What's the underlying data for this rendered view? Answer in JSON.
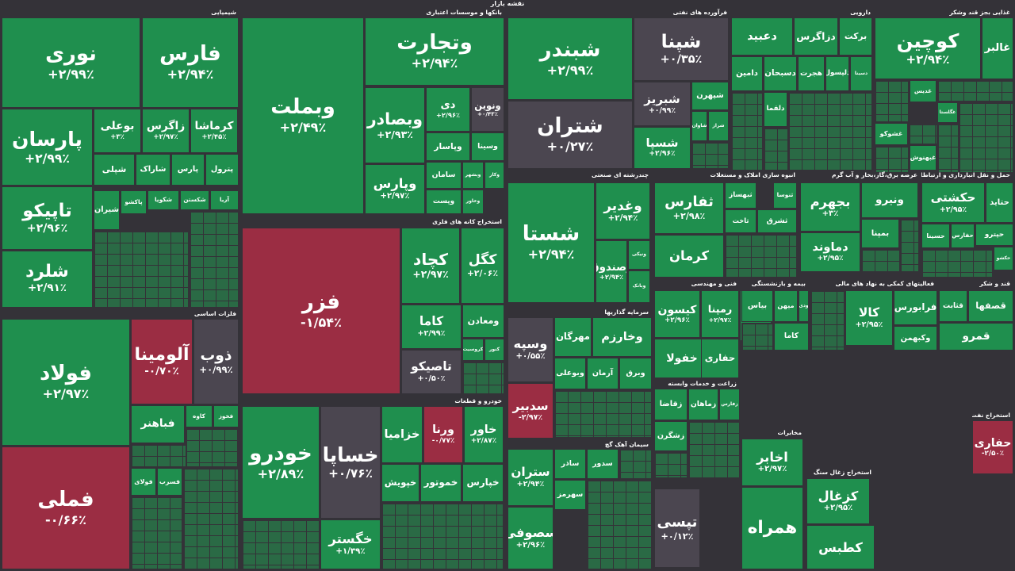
{
  "header": {
    "title": "نقشه بازار"
  },
  "colors": {
    "positive": "#1f8f4e",
    "negative": "#9b2d43",
    "neutral": "#4b4650",
    "background": "#343238"
  },
  "chart_data": {
    "type": "treemap",
    "title": "نقشه بازار",
    "value_unit": "percent change",
    "sectors": [
      {
        "name": "شیمیایی",
        "stocks": [
          {
            "name": "نوری",
            "change": "+۲/۹۹٪"
          },
          {
            "name": "فارس",
            "change": "+۲/۹۴٪"
          },
          {
            "name": "پارسان",
            "change": "+۲/۹۹٪"
          },
          {
            "name": "بوعلی",
            "change": "+۳٪"
          },
          {
            "name": "زاگرس",
            "change": "+۲/۹۷٪"
          },
          {
            "name": "کرماشا",
            "change": "+۲/۴۵٪"
          },
          {
            "name": "تاپیکو",
            "change": "+۲/۹۶٪"
          },
          {
            "name": "شلرد",
            "change": "+۲/۹۱٪"
          },
          {
            "name": "شپلی"
          },
          {
            "name": "شاراک"
          },
          {
            "name": "پارس"
          },
          {
            "name": "پترول"
          },
          {
            "name": "شیران"
          },
          {
            "name": "پاکشو"
          },
          {
            "name": "شکویا"
          },
          {
            "name": "شکستن"
          },
          {
            "name": "آریا"
          }
        ]
      },
      {
        "name": "بانکها و موسسات اعتباری",
        "stocks": [
          {
            "name": "وبملت",
            "change": "+۲/۴۹٪"
          },
          {
            "name": "وتجارت",
            "change": "+۲/۹۴٪"
          },
          {
            "name": "وبصادر",
            "change": "+۲/۹۳٪"
          },
          {
            "name": "دی",
            "change": "+۲/۹۶٪"
          },
          {
            "name": "ونوین",
            "change": "+۰/۴۳٪"
          },
          {
            "name": "وپارس",
            "change": "+۲/۹۷٪"
          },
          {
            "name": "وپاسار"
          },
          {
            "name": "وسینا"
          },
          {
            "name": "سامان"
          },
          {
            "name": "وبشهر"
          },
          {
            "name": "وکار"
          },
          {
            "name": "وپست"
          },
          {
            "name": "وخاور"
          }
        ]
      },
      {
        "name": "استخراج کانه های فلزی",
        "stocks": [
          {
            "name": "فزر",
            "change": "-۱/۵۴٪"
          },
          {
            "name": "کچاد",
            "change": "+۲/۹۷٪"
          },
          {
            "name": "کگل",
            "change": "+۲/۰۶٪"
          },
          {
            "name": "کاما",
            "change": "+۲/۹۹٪"
          },
          {
            "name": "تاصیکو",
            "change": "+۰/۵۰٪"
          },
          {
            "name": "ومعادن"
          },
          {
            "name": "کروسیت"
          },
          {
            "name": "کنور"
          }
        ]
      },
      {
        "name": "فرآورده های نفتی",
        "stocks": [
          {
            "name": "شبندر",
            "change": "+۲/۹۹٪"
          },
          {
            "name": "شپنا",
            "change": "+۰/۳۵٪"
          },
          {
            "name": "شتران",
            "change": "+۰/۲۷٪"
          },
          {
            "name": "شبریز",
            "change": "+۰/۹۹٪"
          },
          {
            "name": "شسپا",
            "change": "+۲/۹۶٪"
          },
          {
            "name": "شپهرن"
          },
          {
            "name": "شاوان"
          },
          {
            "name": "شراز"
          }
        ]
      },
      {
        "name": "دارویی",
        "stocks": [
          {
            "name": "دعبید"
          },
          {
            "name": "دزاگرس"
          },
          {
            "name": "برکت"
          },
          {
            "name": "دامین"
          },
          {
            "name": "دسبحان"
          },
          {
            "name": "هجرت"
          },
          {
            "name": "دلپسول"
          },
          {
            "name": "دسینا"
          },
          {
            "name": "دلقما"
          }
        ]
      },
      {
        "name": "غذایی بجز قند وشکر",
        "stocks": [
          {
            "name": "کوچین",
            "change": "+۲/۹۴٪"
          },
          {
            "name": "غالبر"
          },
          {
            "name": "غدیس"
          },
          {
            "name": "غگلستا"
          },
          {
            "name": "غشوکو"
          },
          {
            "name": "غبهنوش"
          }
        ]
      },
      {
        "name": "فلزات اساسی",
        "stocks": [
          {
            "name": "فولاد",
            "change": "+۲/۹۷٪"
          },
          {
            "name": "فملی",
            "change": "-۰/۶۶٪"
          },
          {
            "name": "آلومینا",
            "change": "-۰/۷۰٪"
          },
          {
            "name": "ذوب",
            "change": "+۰/۹۹٪"
          },
          {
            "name": "فباهنر"
          },
          {
            "name": "کاوه"
          },
          {
            "name": "فخوز"
          },
          {
            "name": "فولای"
          },
          {
            "name": "فسرب"
          }
        ]
      },
      {
        "name": "چندرشته ای صنعتی",
        "stocks": [
          {
            "name": "شستا",
            "change": "+۲/۹۴٪"
          },
          {
            "name": "وغدیر",
            "change": "+۲/۹۴٪"
          },
          {
            "name": "وصندوق",
            "change": "+۲/۹۴٪"
          },
          {
            "name": "ونیکی"
          },
          {
            "name": "وبانک"
          }
        ]
      },
      {
        "name": "انبوه سازی املاک و مستغلات",
        "stocks": [
          {
            "name": "ثفارس",
            "change": "+۲/۹۸٪"
          },
          {
            "name": "ثبهساز"
          },
          {
            "name": "ثنوسا"
          },
          {
            "name": "کرمان"
          },
          {
            "name": "ثاخت"
          },
          {
            "name": "ثشرق"
          }
        ]
      },
      {
        "name": "عرضه برق،گاز،بخار و آب گرم",
        "stocks": [
          {
            "name": "بجهرم",
            "change": "+۳٪"
          },
          {
            "name": "دماوند",
            "change": "+۲/۹۵٪"
          },
          {
            "name": "ونیرو"
          },
          {
            "name": "بمپنا"
          }
        ]
      },
      {
        "name": "حمل و نقل انبارداری و ارتباطات",
        "stocks": [
          {
            "name": "حکشتی",
            "change": "+۲/۹۵٪"
          },
          {
            "name": "حتاید"
          },
          {
            "name": "حسینا"
          },
          {
            "name": "حفارس"
          },
          {
            "name": "حپترو"
          },
          {
            "name": "حکشو"
          }
        ]
      },
      {
        "name": "خودرو و قطعات",
        "stocks": [
          {
            "name": "خودرو",
            "change": "+۲/۸۹٪"
          },
          {
            "name": "خساپا",
            "change": "+۰/۷۶٪"
          },
          {
            "name": "خگستر",
            "change": "+۱/۳۹٪"
          },
          {
            "name": "خزامیا"
          },
          {
            "name": "ورنا",
            "change": "-۰/۷۷٪"
          },
          {
            "name": "خاور",
            "change": "+۲/۸۷٪"
          },
          {
            "name": "خپویش"
          },
          {
            "name": "خموتور"
          },
          {
            "name": "خپارس"
          }
        ]
      },
      {
        "name": "سرمایه گذاریها",
        "stocks": [
          {
            "name": "وسپه",
            "change": "+۰/۵۵٪"
          },
          {
            "name": "وخارزم"
          },
          {
            "name": "مهرگان"
          },
          {
            "name": "وبوعلی"
          },
          {
            "name": "آرمان"
          },
          {
            "name": "وبرق"
          }
        ]
      },
      {
        "name": "سیمان آهک گچ",
        "stocks": [
          {
            "name": "ستران",
            "change": "+۲/۹۴٪"
          },
          {
            "name": "سدبیر",
            "change": "-۲/۹۷٪"
          },
          {
            "name": "سصوفی",
            "change": "+۲/۹۶٪"
          },
          {
            "name": "ساذر"
          },
          {
            "name": "سدور"
          },
          {
            "name": "سهرمز"
          }
        ]
      },
      {
        "name": "فنی و مهندسی",
        "stocks": [
          {
            "name": "کیسون",
            "change": "+۲/۹۶٪"
          },
          {
            "name": "رمپنا",
            "change": "+۲/۹۷٪"
          },
          {
            "name": "خفولا"
          },
          {
            "name": "بیاس"
          },
          {
            "name": "حفاری"
          }
        ]
      },
      {
        "name": "زراعت و خدمات وابسته",
        "stocks": [
          {
            "name": "زقاضا"
          },
          {
            "name": "زماهان"
          },
          {
            "name": "زفارس"
          },
          {
            "name": "زشگرن"
          }
        ]
      },
      {
        "name": "بیمه و بازنشستگی",
        "stocks": [
          {
            "name": "بیاس"
          },
          {
            "name": "میهن"
          },
          {
            "name": "ودی"
          },
          {
            "name": "کاما"
          },
          {
            "name": "تپسی",
            "change": "+۰/۱۲٪"
          }
        ]
      },
      {
        "name": "فعالیتهای کمکی به نهاد های مالی",
        "stocks": [
          {
            "name": "کالا",
            "change": "+۲/۹۵٪"
          },
          {
            "name": "فرابورس"
          },
          {
            "name": "وکبهمن"
          }
        ]
      },
      {
        "name": "قند و شکر",
        "stocks": [
          {
            "name": "قثابت"
          },
          {
            "name": "قصفها"
          },
          {
            "name": "قمرو"
          }
        ]
      },
      {
        "name": "مخابرات",
        "stocks": [
          {
            "name": "اخابر",
            "change": "+۲/۹۷٪"
          },
          {
            "name": "همراه"
          }
        ]
      },
      {
        "name": "استخراج زغال سنگ",
        "stocks": [
          {
            "name": "کزغال",
            "change": "+۲/۹۵٪"
          },
          {
            "name": "کطبس"
          }
        ]
      },
      {
        "name": "استخراج نفت",
        "stocks": [
          {
            "name": "حفاری",
            "change": "-۲/۵۰٪"
          }
        ]
      }
    ]
  }
}
